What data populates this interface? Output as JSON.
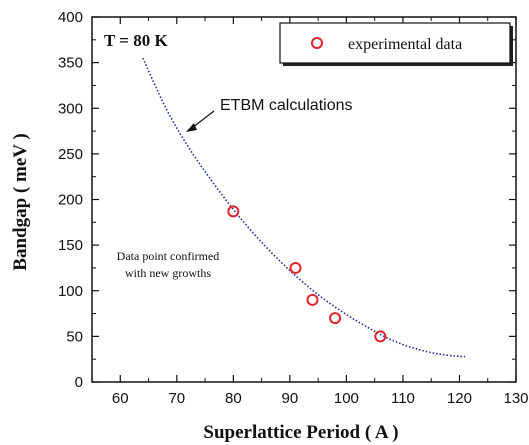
{
  "chart_data": {
    "type": "scatter",
    "xlabel": "Superlattice Period ( A )",
    "ylabel": "Bandgap ( meV )",
    "xlim": [
      55,
      130
    ],
    "ylim": [
      0,
      400
    ],
    "xticks": [
      60,
      70,
      80,
      90,
      100,
      110,
      120,
      130
    ],
    "yticks": [
      0,
      50,
      100,
      150,
      200,
      250,
      300,
      350,
      400
    ],
    "grid": false,
    "legend": {
      "position": "top-right",
      "entries": [
        "experimental data"
      ]
    },
    "series": [
      {
        "name": "experimental data",
        "kind": "scatter",
        "marker": "open-circle",
        "color": "#e0242b",
        "x": [
          80,
          91,
          94,
          98,
          106
        ],
        "y": [
          187,
          125,
          90,
          70,
          50
        ]
      },
      {
        "name": "ETBM calculations",
        "kind": "line",
        "style": "dotted",
        "color": "#1c2a9c",
        "x": [
          64,
          68,
          72,
          76,
          80,
          84,
          88,
          92,
          96,
          100,
          104,
          108,
          112,
          116,
          120,
          121
        ],
        "y": [
          355,
          301,
          258,
          222,
          189,
          160,
          134,
          111,
          91,
          74,
          59,
          46,
          37,
          31,
          28,
          28
        ]
      }
    ],
    "annotations": [
      {
        "text": "T = 80 K"
      },
      {
        "text": "ETBM calculations"
      },
      {
        "text": "Data point confirmed"
      },
      {
        "text": "with new growths"
      }
    ]
  }
}
